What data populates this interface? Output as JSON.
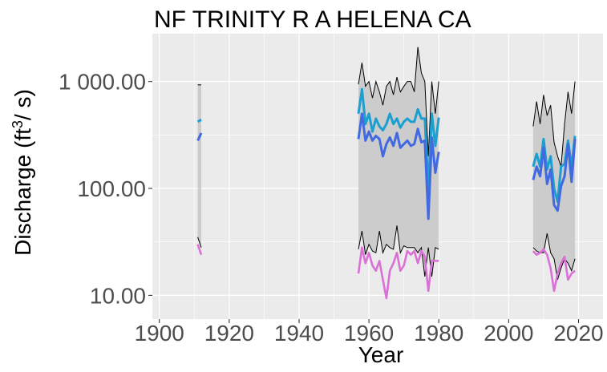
{
  "chart_data": {
    "type": "line",
    "title": "NF TRINITY R A HELENA CA",
    "xlabel": "Year",
    "ylabel_text": "Discharge (ft",
    "ylabel_sup": "3",
    "ylabel_tail": "/ s)",
    "ylabel_end": ")",
    "x_range": [
      1898,
      2027
    ],
    "y_range_log10": [
      0.78,
      1.45
    ],
    "y_scale": "log10",
    "y_range": [
      6.0,
      2800.0
    ],
    "x_ticks": [
      1900,
      1920,
      1940,
      1960,
      1980,
      2000,
      2020
    ],
    "x_tick_labels": [
      "1900",
      "1920",
      "1940",
      "1960",
      "1980",
      "2000",
      "2020"
    ],
    "y_ticks": [
      10,
      100,
      1000
    ],
    "y_tick_labels": [
      "10.00",
      "100.00",
      "1 000.00"
    ],
    "grid": true,
    "panel_background": "#ebebeb",
    "colors": {
      "band": "#cccccc",
      "max_line": "#000000",
      "mean": "#1a9fd0",
      "median": "#4169e1",
      "min": "#da70d6"
    },
    "segments": [
      {
        "years": [
          1911,
          1912
        ],
        "max": [
          930,
          930
        ],
        "min_band": [
          35,
          28
        ],
        "mean": [
          420,
          440
        ],
        "median": [
          280,
          330
        ],
        "min": [
          30,
          24
        ]
      },
      {
        "years": [
          1957,
          1958,
          1959,
          1960,
          1961,
          1962,
          1963,
          1964,
          1965,
          1966,
          1967,
          1968,
          1969,
          1970,
          1971,
          1972,
          1973,
          1974,
          1975,
          1976,
          1977,
          1978,
          1979,
          1980
        ],
        "max": [
          940,
          1500,
          900,
          1000,
          700,
          1000,
          800,
          600,
          900,
          1000,
          750,
          1100,
          800,
          900,
          1000,
          1000,
          800,
          2100,
          1200,
          1000,
          200,
          1000,
          500,
          1000
        ],
        "min_band": [
          27,
          40,
          24,
          30,
          26,
          25,
          40,
          25,
          30,
          28,
          27,
          45,
          25,
          29,
          28,
          28,
          28,
          25,
          28,
          15,
          28,
          15,
          28,
          27
        ],
        "mean": [
          500,
          850,
          400,
          500,
          340,
          450,
          380,
          350,
          400,
          500,
          400,
          450,
          370,
          420,
          450,
          420,
          420,
          550,
          450,
          450,
          100,
          500,
          250,
          460
        ],
        "median": [
          290,
          500,
          280,
          340,
          280,
          310,
          290,
          200,
          260,
          300,
          250,
          330,
          240,
          260,
          280,
          250,
          260,
          360,
          270,
          280,
          52,
          300,
          140,
          220
        ],
        "min": [
          16,
          28,
          20,
          25,
          19,
          17,
          21,
          14,
          9.4,
          17,
          20,
          25,
          17,
          19,
          26,
          24,
          26,
          20,
          26,
          23,
          11,
          21,
          21,
          21
        ]
      },
      {
        "years": [
          2007,
          2008,
          2009,
          2010,
          2011,
          2012,
          2013,
          2014,
          2015,
          2016,
          2017,
          2018,
          2019
        ],
        "max": [
          380,
          650,
          400,
          750,
          480,
          600,
          270,
          200,
          160,
          400,
          800,
          500,
          1000
        ],
        "min_band": [
          28,
          26,
          25,
          25,
          38,
          25,
          22,
          14,
          18,
          22,
          20,
          17,
          22
        ],
        "mean": [
          160,
          210,
          160,
          290,
          150,
          200,
          100,
          75,
          160,
          170,
          280,
          160,
          310
        ],
        "median": [
          120,
          160,
          130,
          240,
          110,
          150,
          70,
          62,
          105,
          130,
          260,
          115,
          290
        ],
        "min": [
          26,
          24,
          25,
          27,
          24,
          18,
          11,
          16,
          20,
          23,
          14,
          16,
          17
        ]
      }
    ]
  }
}
